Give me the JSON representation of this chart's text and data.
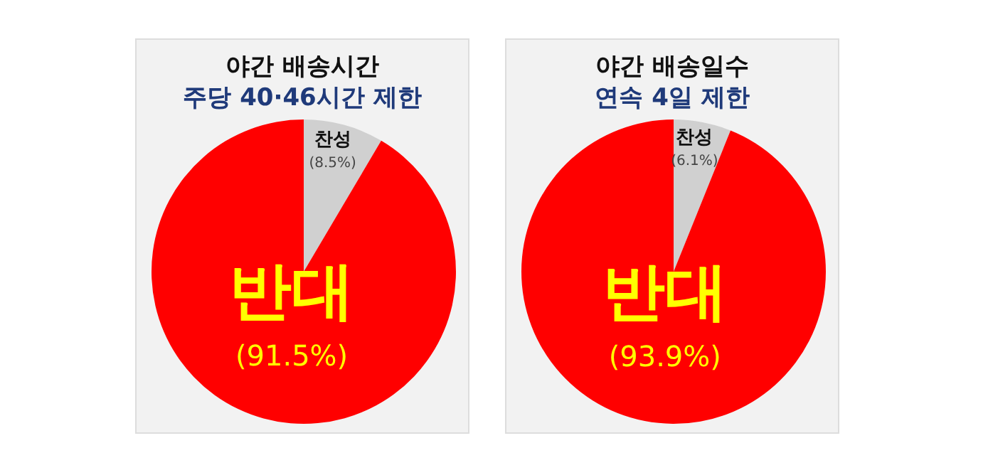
{
  "chart_data": [
    {
      "type": "pie",
      "title": "야간 배송시간",
      "subtitle": "주당 40·46시간 제한",
      "categories": [
        "찬성",
        "반대"
      ],
      "values": [
        8.5,
        91.5
      ],
      "colors": [
        "#d0d0d0",
        "#ff0000"
      ],
      "value_labels": [
        "(8.5%)",
        "(91.5%)"
      ],
      "legend": false
    },
    {
      "type": "pie",
      "title": "야간 배송일수",
      "subtitle": "연속 4일 제한",
      "categories": [
        "찬성",
        "반대"
      ],
      "values": [
        6.1,
        93.9
      ],
      "colors": [
        "#d0d0d0",
        "#ff0000"
      ],
      "value_labels": [
        "(6.1%)",
        "(93.9%)"
      ],
      "legend": false
    }
  ]
}
